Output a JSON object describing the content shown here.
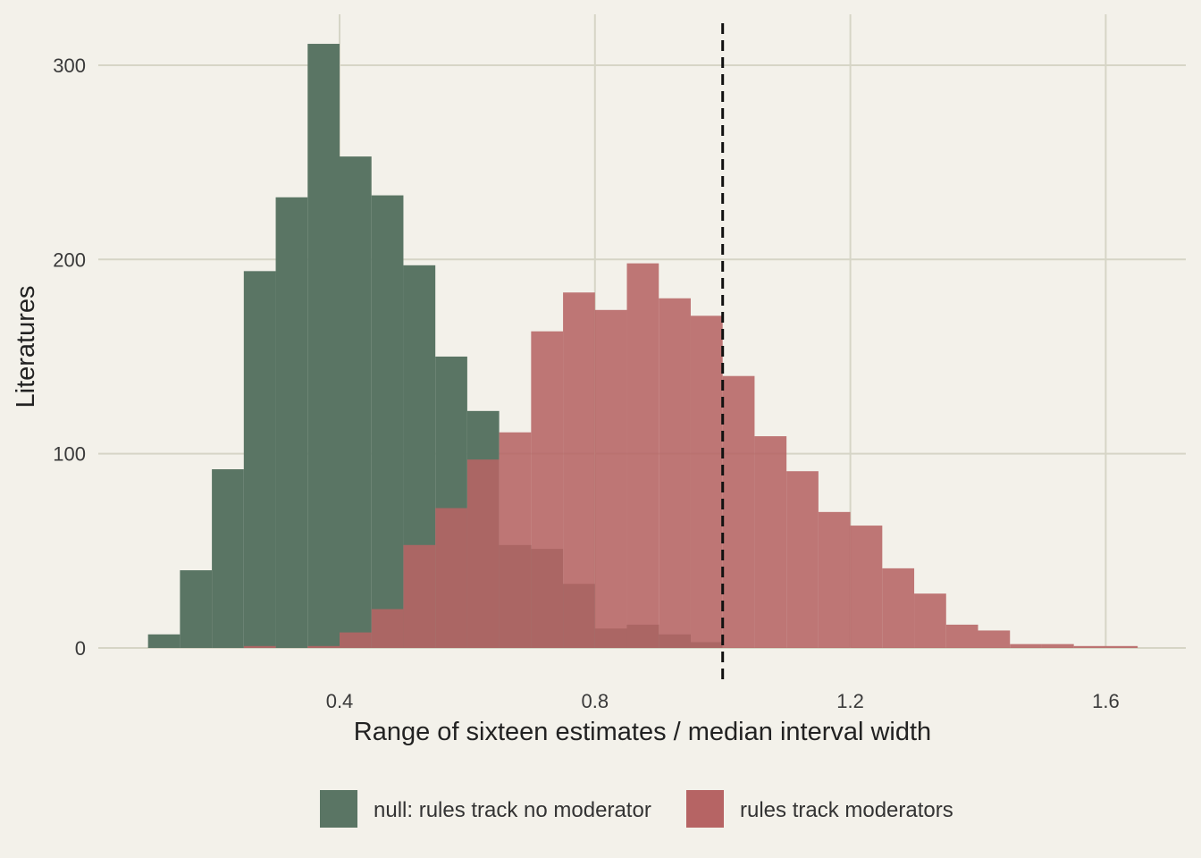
{
  "chart_data": {
    "type": "histogram",
    "title": "",
    "xlabel": "Range of sixteen estimates / median interval width",
    "ylabel": "Literatures",
    "xlim": [
      0.025,
      1.725
    ],
    "ylim": [
      0,
      323
    ],
    "x_ticks": [
      0.4,
      0.8,
      1.2,
      1.6
    ],
    "x_tick_labels": [
      "0.4",
      "0.8",
      "1.2",
      "1.6"
    ],
    "y_ticks": [
      0,
      100,
      200,
      300
    ],
    "y_tick_labels": [
      "0",
      "100",
      "200",
      "300"
    ],
    "grid": true,
    "bin_width": 0.05,
    "reference_line": {
      "x": 1.0,
      "style": "dashed"
    },
    "legend_position": "bottom",
    "series": [
      {
        "name": "null: rules track no moderator",
        "color": "#5a7564",
        "bin_starts": [
          0.1,
          0.15,
          0.2,
          0.25,
          0.3,
          0.35,
          0.4,
          0.45,
          0.5,
          0.55,
          0.6,
          0.65,
          0.7,
          0.75,
          0.8,
          0.85,
          0.9,
          0.95
        ],
        "counts": [
          7,
          40,
          92,
          194,
          232,
          311,
          253,
          233,
          197,
          150,
          122,
          53,
          51,
          33,
          10,
          12,
          7,
          3
        ]
      },
      {
        "name": "rules track moderators",
        "color": "#b66464",
        "bin_starts": [
          0.25,
          0.3,
          0.35,
          0.4,
          0.45,
          0.5,
          0.55,
          0.6,
          0.65,
          0.7,
          0.75,
          0.8,
          0.85,
          0.9,
          0.95,
          1.0,
          1.05,
          1.1,
          1.15,
          1.2,
          1.25,
          1.3,
          1.35,
          1.4,
          1.45,
          1.5,
          1.55,
          1.6
        ],
        "counts": [
          1,
          0,
          1,
          8,
          20,
          53,
          72,
          97,
          111,
          163,
          183,
          174,
          198,
          180,
          171,
          140,
          109,
          91,
          70,
          63,
          41,
          28,
          12,
          9,
          2,
          2,
          1,
          1
        ]
      }
    ]
  }
}
